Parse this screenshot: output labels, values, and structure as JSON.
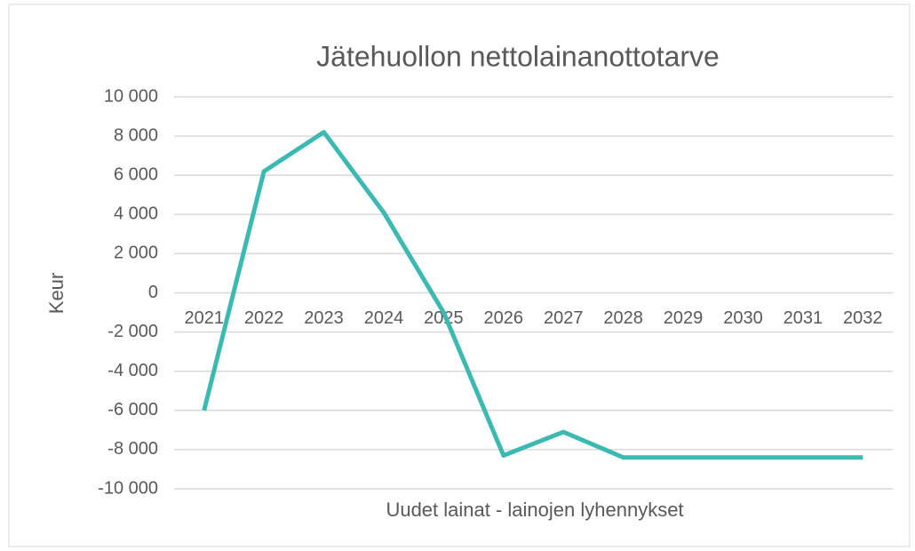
{
  "chart_data": {
    "type": "line",
    "title": "Jätehuollon nettolainanottotarve",
    "y_label": "Keur",
    "x_label": "Uudet lainat - lainojen lyhennykset",
    "categories": [
      "2021",
      "2022",
      "2023",
      "2024",
      "2025",
      "2026",
      "2027",
      "2028",
      "2029",
      "2030",
      "2031",
      "2032"
    ],
    "series": [
      {
        "name": "Uudet lainat - lainojen lyhennykset",
        "color": "#3cbab1",
        "values": [
          -6000,
          6200,
          8200,
          4100,
          -1000,
          -8300,
          -7100,
          -8400,
          -8400,
          -8400,
          -8400,
          -8400
        ]
      }
    ],
    "ylim": [
      -10000,
      10000
    ],
    "yticks": [
      {
        "value": 10000,
        "label": "10 000"
      },
      {
        "value": 8000,
        "label": "8 000"
      },
      {
        "value": 6000,
        "label": "6 000"
      },
      {
        "value": 4000,
        "label": "4 000"
      },
      {
        "value": 2000,
        "label": "2 000"
      },
      0,
      {
        "value": -2000,
        "label": "-2 000"
      },
      {
        "value": -4000,
        "label": "-4 000"
      },
      {
        "value": -6000,
        "label": "-6 000"
      },
      {
        "value": -8000,
        "label": "-8 000"
      },
      {
        "value": -10000,
        "label": "-10 000"
      }
    ],
    "grid": true
  }
}
